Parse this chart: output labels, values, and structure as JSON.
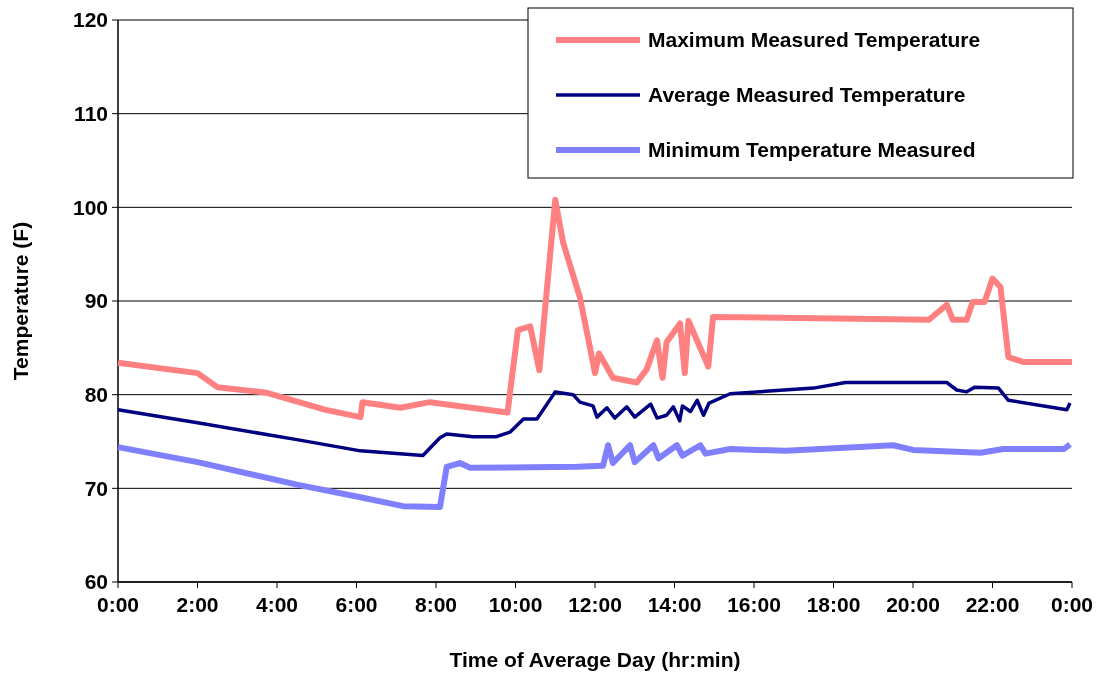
{
  "chart_data": {
    "type": "line",
    "xlabel": "Time of Average Day (hr:min)",
    "ylabel": "Temperature (F)",
    "xlim": [
      0,
      24
    ],
    "ylim": [
      60,
      120
    ],
    "yticks": [
      60,
      70,
      80,
      90,
      100,
      110,
      120
    ],
    "xticks": [
      {
        "value": 0,
        "label": "0:00"
      },
      {
        "value": 2,
        "label": "2:00"
      },
      {
        "value": 4,
        "label": "4:00"
      },
      {
        "value": 6,
        "label": "6:00"
      },
      {
        "value": 8,
        "label": "8:00"
      },
      {
        "value": 10,
        "label": "10:00"
      },
      {
        "value": 12,
        "label": "12:00"
      },
      {
        "value": 14,
        "label": "14:00"
      },
      {
        "value": 16,
        "label": "16:00"
      },
      {
        "value": 18,
        "label": "18:00"
      },
      {
        "value": 20,
        "label": "20:00"
      },
      {
        "value": 22,
        "label": "22:00"
      },
      {
        "value": 24,
        "label": "0:00"
      }
    ],
    "grid": "y",
    "legend": "top right",
    "marker": "none",
    "line_style": "solid",
    "series": [
      {
        "name": "Maximum Measured Temperature",
        "color": "#ff8080",
        "x": [
          0,
          2,
          2.5,
          3.75,
          5.2,
          6.1,
          6.15,
          7.1,
          7.85,
          9.8,
          10.06,
          10.37,
          10.6,
          11,
          11.2,
          11.62,
          11.87,
          12,
          12.1,
          12.45,
          13.05,
          13.3,
          13.56,
          13.7,
          13.8,
          14.14,
          14.26,
          14.35,
          14.85,
          14.97,
          20.4,
          20.85,
          21,
          21.35,
          21.5,
          21.8,
          22,
          22.2,
          22.4,
          22.77,
          24
        ],
        "values": [
          83.4,
          82.3,
          80.8,
          80.2,
          78.4,
          77.6,
          79.2,
          78.6,
          79.2,
          78.1,
          86.9,
          87.3,
          82.6,
          100.8,
          96.2,
          90.4,
          85.1,
          82.3,
          84.4,
          81.8,
          81.3,
          82.7,
          85.8,
          81.8,
          85.6,
          87.6,
          82.3,
          87.9,
          83,
          88.3,
          88,
          89.6,
          88,
          88,
          89.9,
          89.9,
          92.4,
          91.5,
          84,
          83.5,
          83.5
        ]
      },
      {
        "name": "Average Measured Temperature",
        "color": "#000080",
        "x": [
          0,
          2,
          4.5,
          6.1,
          7.67,
          8.1,
          8.27,
          8.93,
          9.5,
          9.86,
          10.2,
          10.54,
          11,
          11.45,
          11.62,
          11.95,
          12.05,
          12.3,
          12.5,
          12.8,
          13,
          13.4,
          13.56,
          13.8,
          13.97,
          14.13,
          14.2,
          14.4,
          14.57,
          14.73,
          14.87,
          15.4,
          17.5,
          18.3,
          20.85,
          21.1,
          21.35,
          21.55,
          22.15,
          22.4,
          23.87,
          23.95
        ],
        "values": [
          78.4,
          77,
          75.2,
          74,
          73.5,
          75.4,
          75.8,
          75.5,
          75.5,
          76,
          77.4,
          77.4,
          80.3,
          80,
          79.2,
          78.8,
          77.6,
          78.6,
          77.5,
          78.7,
          77.6,
          79,
          77.5,
          77.8,
          78.7,
          77.2,
          78.8,
          78.2,
          79.4,
          77.8,
          79.1,
          80.1,
          80.7,
          81.3,
          81.3,
          80.5,
          80.3,
          80.8,
          80.7,
          79.4,
          78.4,
          79.1
        ]
      },
      {
        "name": "Minimum Temperature Measured",
        "color": "#8080ff",
        "x": [
          0,
          2,
          4.5,
          6.16,
          7.17,
          8.1,
          8.27,
          8.6,
          8.86,
          11.55,
          12.2,
          12.33,
          12.45,
          12.88,
          13,
          13.47,
          13.6,
          14.06,
          14.2,
          14.65,
          14.78,
          15.4,
          16.8,
          19.5,
          20,
          21.7,
          22.27,
          23.8,
          23.95
        ],
        "values": [
          74.4,
          72.8,
          70.4,
          69,
          68.1,
          68,
          72.3,
          72.7,
          72.2,
          72.3,
          72.4,
          74.6,
          72.7,
          74.6,
          72.8,
          74.6,
          73.2,
          74.6,
          73.5,
          74.6,
          73.7,
          74.2,
          74,
          74.6,
          74.1,
          73.8,
          74.2,
          74.2,
          74.7
        ]
      }
    ]
  }
}
